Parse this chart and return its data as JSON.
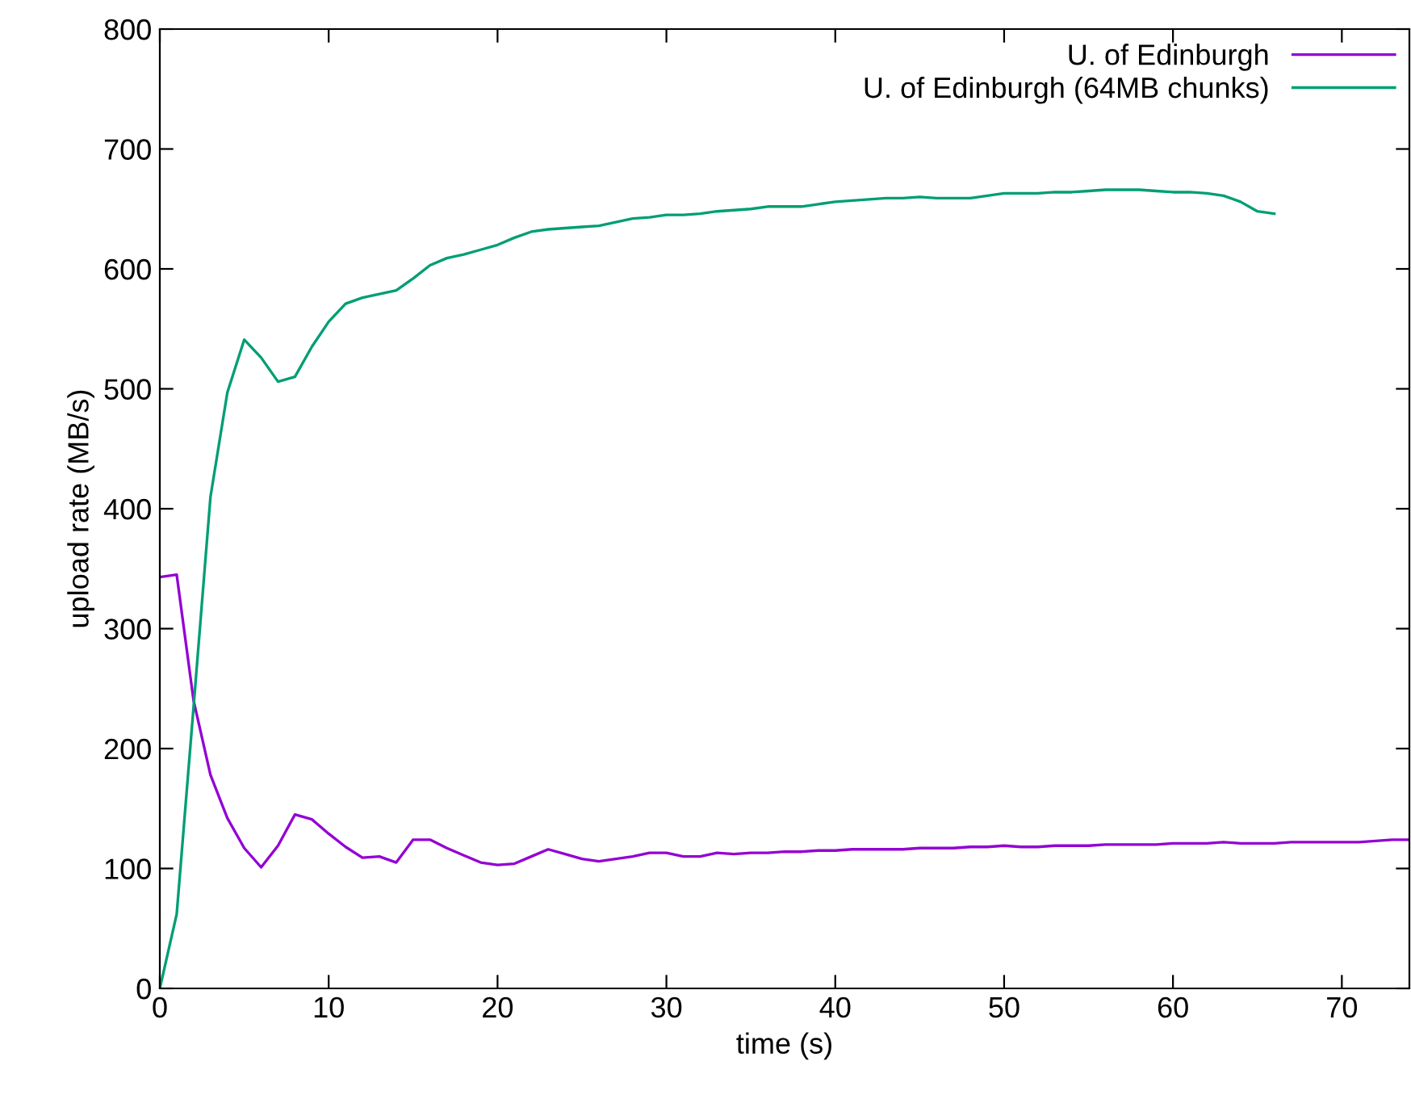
{
  "chart_data": {
    "type": "line",
    "xlabel": "time (s)",
    "ylabel": "upload rate (MB/s)",
    "xlim": [
      0,
      74
    ],
    "ylim": [
      0,
      800
    ],
    "xticks": [
      0,
      10,
      20,
      30,
      40,
      50,
      60,
      70
    ],
    "yticks": [
      0,
      100,
      200,
      300,
      400,
      500,
      600,
      700,
      800
    ],
    "legend": "top right",
    "grid": false,
    "marker": "none",
    "line_style": "solid",
    "series": [
      {
        "name": "U. of Edinburgh",
        "color": "#9400d3",
        "x": [
          0,
          1,
          2,
          3,
          4,
          5,
          6,
          7,
          8,
          9,
          10,
          11,
          12,
          13,
          14,
          15,
          16,
          17,
          18,
          19,
          20,
          21,
          22,
          23,
          24,
          25,
          26,
          27,
          28,
          29,
          30,
          31,
          32,
          33,
          34,
          35,
          36,
          37,
          38,
          39,
          40,
          41,
          42,
          43,
          44,
          45,
          46,
          47,
          48,
          49,
          50,
          51,
          52,
          53,
          54,
          55,
          56,
          57,
          58,
          59,
          60,
          61,
          62,
          63,
          64,
          65,
          66,
          67,
          68,
          69,
          70,
          71,
          72,
          73,
          74
        ],
        "values": [
          343,
          345,
          240,
          178,
          142,
          117,
          101,
          119,
          145,
          141,
          129,
          118,
          109,
          110,
          105,
          124,
          124,
          117,
          111,
          105,
          103,
          104,
          110,
          116,
          112,
          108,
          106,
          108,
          110,
          113,
          113,
          110,
          110,
          113,
          112,
          113,
          113,
          114,
          114,
          115,
          115,
          116,
          116,
          116,
          116,
          117,
          117,
          117,
          118,
          118,
          119,
          118,
          118,
          119,
          119,
          119,
          120,
          120,
          120,
          120,
          121,
          121,
          121,
          122,
          121,
          121,
          121,
          122,
          122,
          122,
          122,
          122,
          123,
          124,
          124
        ]
      },
      {
        "name": "U. of Edinburgh (64MB chunks)",
        "color": "#009e73",
        "x": [
          0,
          1,
          2,
          3,
          4,
          5,
          6,
          7,
          8,
          9,
          10,
          11,
          12,
          13,
          14,
          15,
          16,
          17,
          18,
          19,
          20,
          21,
          22,
          23,
          24,
          25,
          26,
          27,
          28,
          29,
          30,
          31,
          32,
          33,
          34,
          35,
          36,
          37,
          38,
          39,
          40,
          41,
          42,
          43,
          44,
          45,
          46,
          47,
          48,
          49,
          50,
          51,
          52,
          53,
          54,
          55,
          56,
          57,
          58,
          59,
          60,
          61,
          62,
          63,
          64,
          65,
          66
        ],
        "values": [
          0,
          62,
          235,
          410,
          497,
          541,
          526,
          506,
          510,
          535,
          556,
          571,
          576,
          579,
          582,
          592,
          603,
          609,
          612,
          616,
          620,
          626,
          631,
          633,
          634,
          635,
          636,
          639,
          642,
          643,
          645,
          645,
          646,
          648,
          649,
          650,
          652,
          652,
          652,
          654,
          656,
          657,
          658,
          659,
          659,
          660,
          659,
          659,
          659,
          661,
          663,
          663,
          663,
          664,
          664,
          665,
          666,
          666,
          666,
          665,
          664,
          664,
          663,
          661,
          656,
          648,
          646
        ]
      }
    ]
  }
}
